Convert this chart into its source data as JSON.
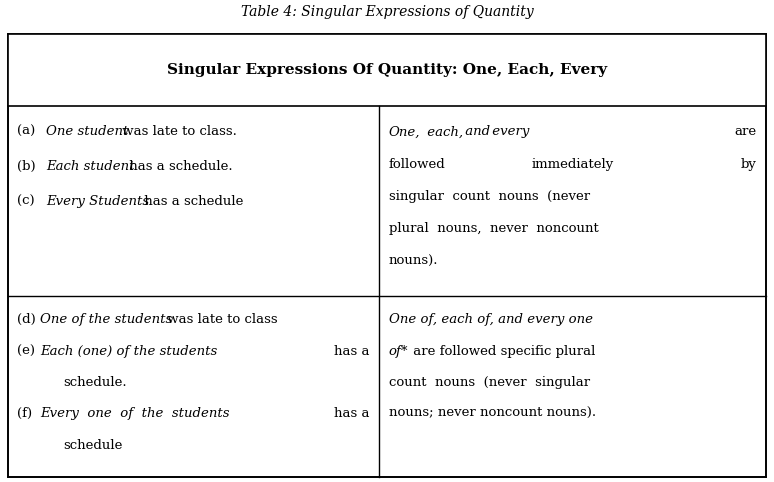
{
  "title": "Table 4: Singular Expressions of Quantity",
  "header": "Singular Expressions Of Quantity: One, Each, Every",
  "bg_color": "#ffffff",
  "border_color": "#000000",
  "title_fontsize": 10,
  "header_fontsize": 11,
  "cell_fontsize": 9.5,
  "rows": [
    {
      "left": "(a)  One student was late to class.\n\n(b)  Each student has a schedule.\n\n(c)  Every Students has a schedule",
      "right": "One, each, and every  are followed   immediately   by singular  count  nouns  (never plural nouns, never noncount nouns)."
    },
    {
      "left": "(d) One of the students was late to class\n\n(e) Each (one) of the students  has a\n      schedule.\n\n(f)  Every  one  of  the  students   has a\n      schedule",
      "right": "One of, each of, and every one of* are followed specific plural count  nouns  (never  singular nouns; never noncount nouns)."
    }
  ],
  "col_split": 0.49
}
